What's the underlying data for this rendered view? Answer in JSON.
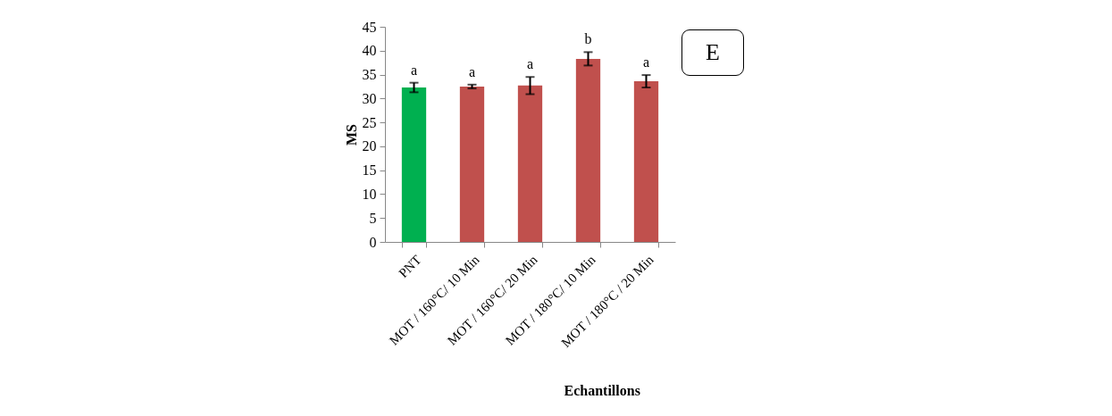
{
  "chart_data": {
    "type": "bar",
    "ylabel": "MS",
    "xlabel": "Echantillons",
    "categories": [
      "PNT",
      "MOT / 160°C/ 10 Min",
      "MOT  / 160°C/ 20 Min",
      "MOT / 180°C/ 10 Min",
      "MOT  / 180°C / 20 Min"
    ],
    "values": [
      32.3,
      32.5,
      32.7,
      38.3,
      33.6
    ],
    "errors": [
      1.0,
      0.4,
      1.8,
      1.4,
      1.3
    ],
    "colors": [
      "#00b050",
      "#c0504d",
      "#c0504d",
      "#c0504d",
      "#c0504d"
    ],
    "ylim": [
      0,
      45
    ],
    "yticks": [
      0,
      5,
      10,
      15,
      20,
      25,
      30,
      35,
      40,
      45
    ],
    "grid": false,
    "annotations": [
      "a",
      "a",
      "a",
      "b",
      "a",
      "E"
    ]
  }
}
